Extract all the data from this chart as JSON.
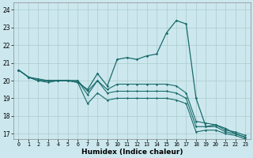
{
  "xlabel": "Humidex (Indice chaleur)",
  "xlim": [
    -0.5,
    23.5
  ],
  "ylim": [
    16.7,
    24.4
  ],
  "yticks": [
    17,
    18,
    19,
    20,
    21,
    22,
    23,
    24
  ],
  "xticks": [
    0,
    1,
    2,
    3,
    4,
    5,
    6,
    7,
    8,
    9,
    10,
    11,
    12,
    13,
    14,
    15,
    16,
    17,
    18,
    19,
    20,
    21,
    22,
    23
  ],
  "bg_color": "#cce8ee",
  "grid_color": "#aacccc",
  "line_color": "#1a6b6b",
  "line1_x": [
    0,
    1,
    2,
    3,
    4,
    5,
    6,
    7,
    8,
    9,
    10,
    11,
    12,
    13,
    14,
    15,
    16,
    17,
    18,
    19,
    20,
    21,
    22,
    23
  ],
  "line1_y": [
    20.6,
    20.2,
    20.0,
    20.0,
    20.0,
    20.0,
    19.9,
    19.5,
    20.4,
    19.7,
    21.2,
    21.3,
    21.2,
    21.4,
    21.5,
    22.7,
    23.4,
    23.2,
    19.0,
    17.4,
    17.5,
    17.3,
    17.0,
    16.8
  ],
  "line2_x": [
    0,
    1,
    2,
    3,
    4,
    5,
    6,
    7,
    8,
    9,
    10,
    11,
    12,
    13,
    14,
    15,
    16,
    17,
    18,
    19,
    20,
    21,
    22,
    23
  ],
  "line2_y": [
    20.6,
    20.2,
    20.0,
    20.0,
    20.0,
    20.0,
    20.0,
    19.4,
    20.0,
    19.5,
    19.8,
    19.8,
    19.8,
    19.8,
    19.8,
    19.8,
    19.7,
    19.3,
    17.7,
    17.6,
    17.5,
    17.2,
    17.1,
    16.9
  ],
  "line3_x": [
    0,
    1,
    2,
    3,
    4,
    5,
    6,
    7,
    8,
    9,
    10,
    11,
    12,
    13,
    14,
    15,
    16,
    17,
    18,
    19,
    20,
    21,
    22,
    23
  ],
  "line3_y": [
    20.6,
    20.2,
    20.1,
    20.0,
    20.0,
    20.0,
    20.0,
    19.2,
    20.0,
    19.3,
    19.4,
    19.4,
    19.4,
    19.4,
    19.4,
    19.4,
    19.3,
    19.0,
    17.4,
    17.4,
    17.4,
    17.1,
    17.0,
    16.8
  ],
  "line4_x": [
    0,
    1,
    2,
    3,
    4,
    5,
    6,
    7,
    8,
    9,
    10,
    11,
    12,
    13,
    14,
    15,
    16,
    17,
    18,
    19,
    20,
    21,
    22,
    23
  ],
  "line4_y": [
    20.6,
    20.2,
    20.0,
    19.9,
    20.0,
    20.0,
    19.9,
    18.7,
    19.3,
    18.9,
    19.0,
    19.0,
    19.0,
    19.0,
    19.0,
    19.0,
    18.9,
    18.7,
    17.1,
    17.2,
    17.2,
    17.0,
    16.9,
    16.7
  ]
}
